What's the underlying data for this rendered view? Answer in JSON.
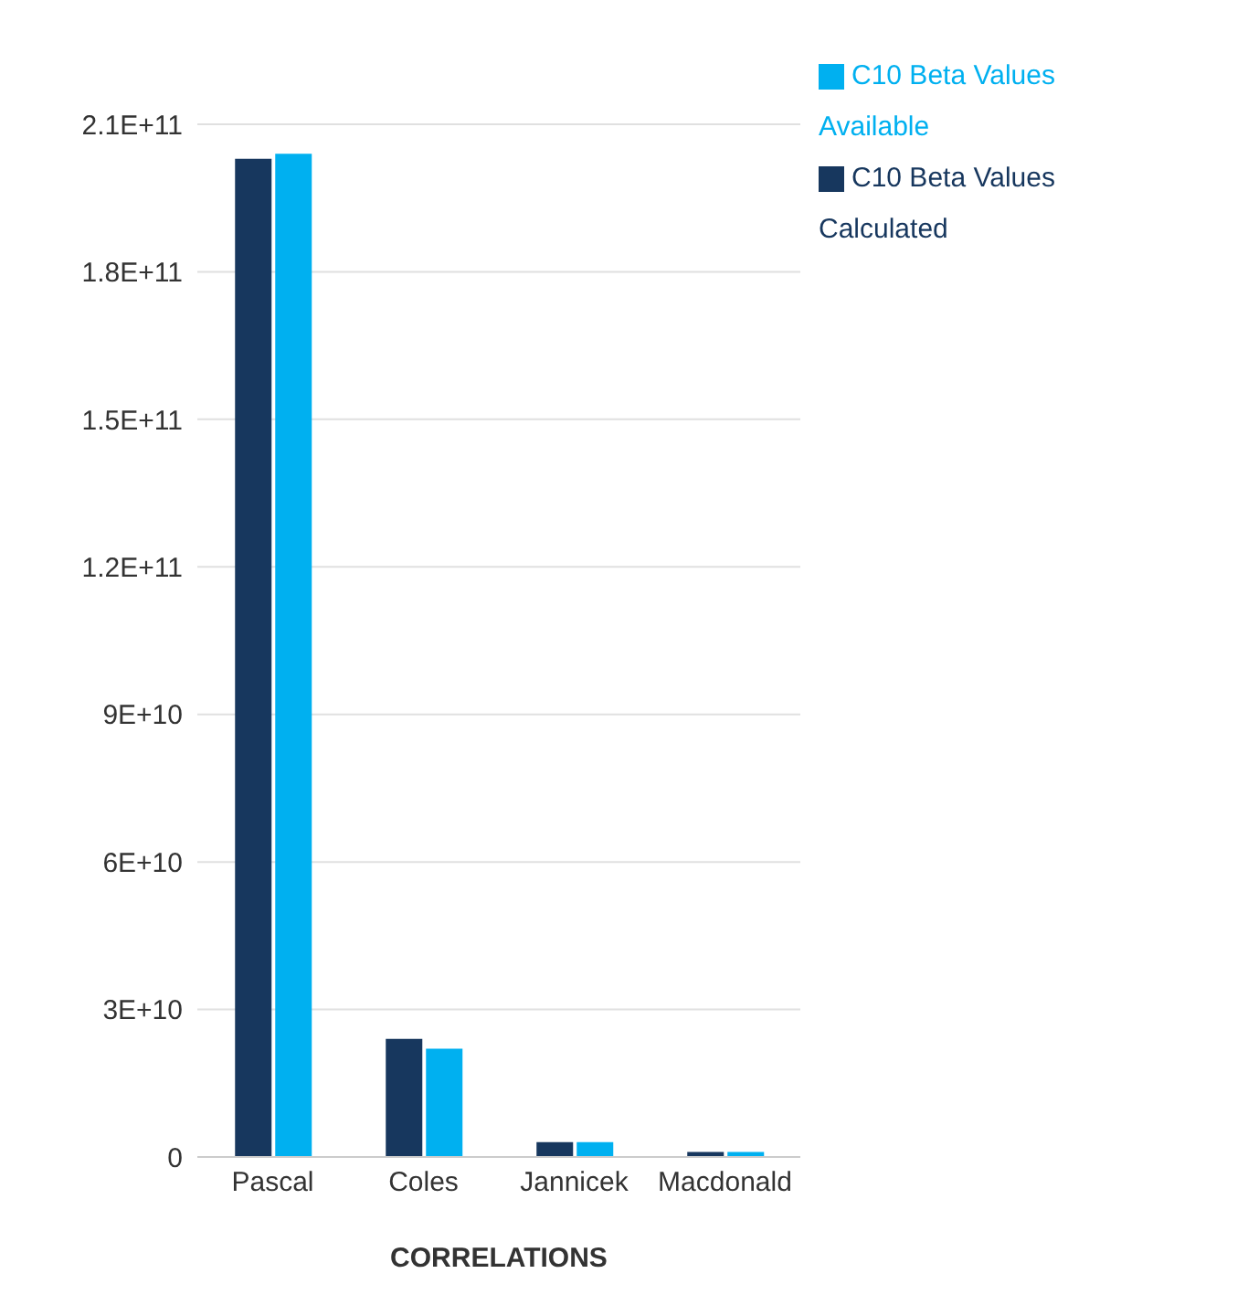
{
  "chart_data": {
    "type": "bar",
    "xlabel": "CORRELATIONS",
    "categories": [
      "Pascal",
      "Coles",
      "Jannicek",
      "Macdonald"
    ],
    "series": [
      {
        "name": "C10 Beta Values Calculated",
        "color": "#17375e",
        "values": [
          203000000000,
          24000000000,
          3000000000,
          1000000000
        ]
      },
      {
        "name": "C10 Beta Values Available",
        "color": "#00b0f0",
        "values": [
          204000000000,
          22000000000,
          3000000000,
          1000000000
        ]
      }
    ],
    "ylim": [
      0,
      210000000000
    ],
    "yticks": [
      {
        "value": 0,
        "label": "0"
      },
      {
        "value": 30000000000,
        "label": "3E+10"
      },
      {
        "value": 60000000000,
        "label": "6E+10"
      },
      {
        "value": 90000000000,
        "label": "9E+10"
      },
      {
        "value": 120000000000,
        "label": "1.2E+11"
      },
      {
        "value": 150000000000,
        "label": "1.5E+11"
      },
      {
        "value": 180000000000,
        "label": "1.8E+11"
      },
      {
        "value": 210000000000,
        "label": "2.1E+11"
      }
    ],
    "grid": "y",
    "legend": "top right"
  }
}
